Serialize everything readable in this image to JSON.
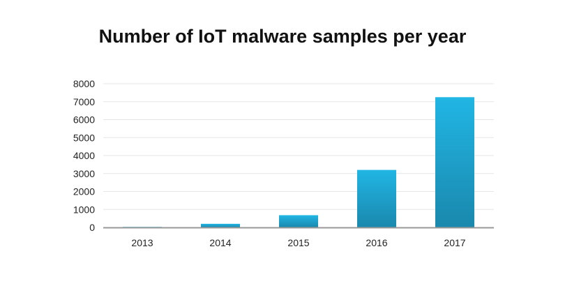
{
  "chart_data": {
    "type": "bar",
    "title": "Number of IoT malware samples per year",
    "categories": [
      "2013",
      "2014",
      "2015",
      "2016",
      "2017"
    ],
    "values": [
      30,
      200,
      680,
      3200,
      7250
    ],
    "xlabel": "",
    "ylabel": "",
    "ylim": [
      0,
      8000
    ],
    "yticks": [
      "0",
      "1000",
      "2000",
      "3000",
      "4000",
      "5000",
      "6000",
      "7000",
      "8000"
    ],
    "grid": true,
    "bar_color_top": "#21b6e4",
    "bar_color_bottom": "#1a88ad"
  }
}
